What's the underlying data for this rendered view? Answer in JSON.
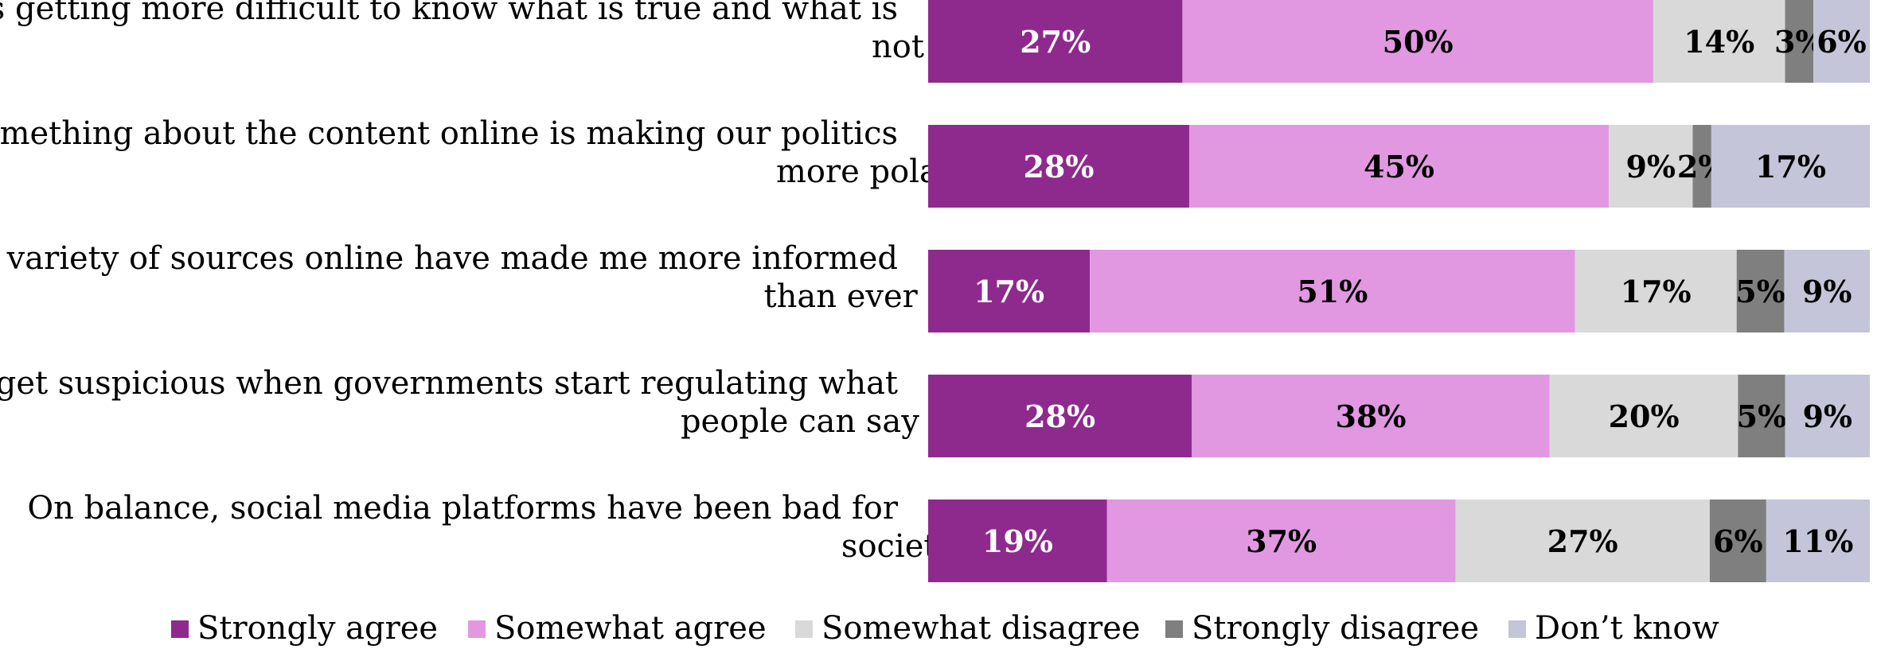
{
  "chart_data": {
    "type": "bar",
    "orientation": "horizontal",
    "stacked": true,
    "grid": false,
    "legend_placement": "bottom",
    "categories": [
      [
        "It’s getting more difficult to know what is true and what is",
        "not"
      ],
      [
        "Something about the content online is making our politics",
        "more polarized"
      ],
      [
        "The variety of sources online have made me more informed",
        "than ever before"
      ],
      [
        "I get suspicious when governments start regulating what",
        "people can say and not say"
      ],
      [
        "On balance, social media platforms have been bad for",
        "society"
      ]
    ],
    "series": [
      {
        "name": "Strongly agree",
        "color": "#8e2a8e",
        "label_color": "#ffffff",
        "values": [
          27,
          28,
          17,
          28,
          19
        ]
      },
      {
        "name": "Somewhat agree",
        "color": "#e198e1",
        "label_color": "#000000",
        "values": [
          50,
          45,
          51,
          38,
          37
        ]
      },
      {
        "name": "Somewhat disagree",
        "color": "#d9d9d9",
        "label_color": "#000000",
        "values": [
          14,
          9,
          17,
          20,
          27
        ]
      },
      {
        "name": "Strongly disagree",
        "color": "#7f7f7f",
        "label_color": "#000000",
        "values": [
          3,
          2,
          5,
          5,
          6
        ]
      },
      {
        "name": "Don’t know",
        "color": "#c5c5d9",
        "label_color": "#000000",
        "values": [
          6,
          17,
          9,
          9,
          11
        ]
      }
    ],
    "data_labels": [
      [
        "27%",
        "50%",
        "14%",
        "3%",
        "6%"
      ],
      [
        "28%",
        "45%",
        "9%",
        "2%",
        "17%"
      ],
      [
        "17%",
        "51%",
        "17%",
        "5%",
        "9%"
      ],
      [
        "28%",
        "38%",
        "20%",
        "5%",
        "9%"
      ],
      [
        "19%",
        "37%",
        "27%",
        "6%",
        "11%"
      ]
    ]
  }
}
